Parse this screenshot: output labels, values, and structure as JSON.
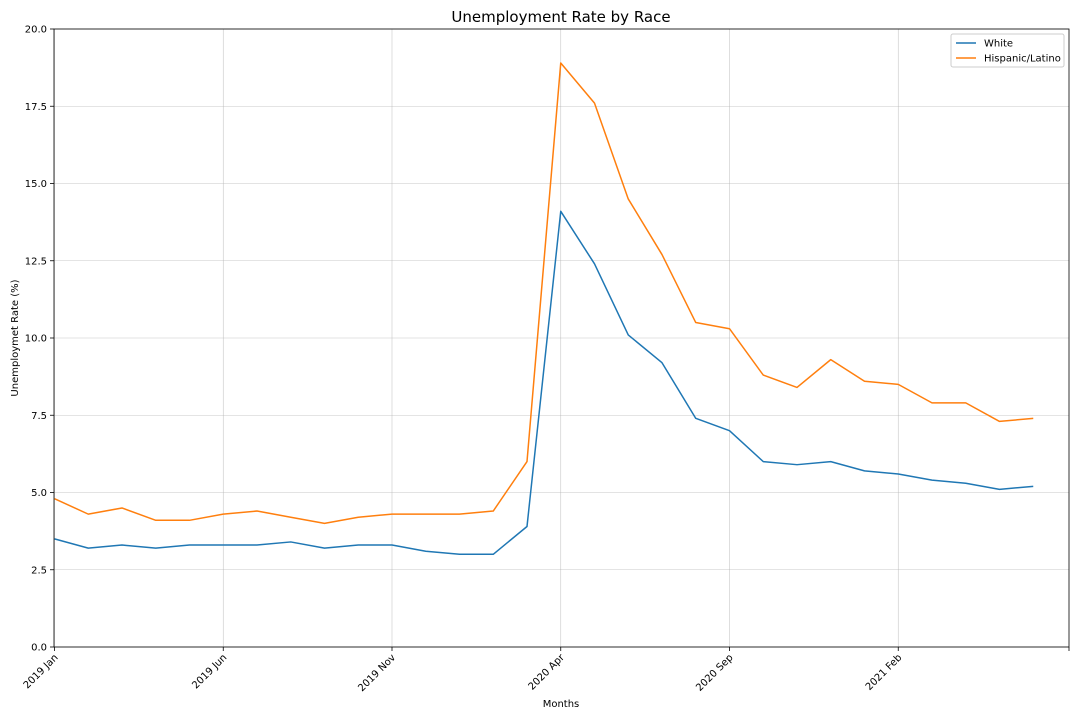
{
  "chart_data": {
    "type": "line",
    "title": "Unemployment Rate by Race",
    "xlabel": "Months",
    "ylabel": "Unemploymet Rate (%)",
    "ylim": [
      0,
      20
    ],
    "yticks": [
      "0.0",
      "2.5",
      "5.0",
      "7.5",
      "10.0",
      "12.5",
      "15.0",
      "17.5",
      "20.0"
    ],
    "ytick_values": [
      0,
      2.5,
      5,
      7.5,
      10,
      12.5,
      15,
      17.5,
      20
    ],
    "x": [
      "2019 Jan",
      "2019 Feb",
      "2019 Mar",
      "2019 Apr",
      "2019 May",
      "2019 Jun",
      "2019 Jul",
      "2019 Aug",
      "2019 Sep",
      "2019 Oct",
      "2019 Nov",
      "2019 Dec",
      "2020 Jan",
      "2020 Feb",
      "2020 Mar",
      "2020 Apr",
      "2020 May",
      "2020 Jun",
      "2020 Jul",
      "2020 Aug",
      "2020 Sep",
      "2020 Oct",
      "2020 Nov",
      "2020 Dec",
      "2021 Jan",
      "2021 Feb",
      "2021 Mar",
      "2021 Apr",
      "2021 May",
      "2021 Jun"
    ],
    "xticks": [
      "2019 Jan",
      "2019 Jun",
      "2019 Nov",
      "2020 Apr",
      "2020 Sep",
      "2021 Feb"
    ],
    "xtick_indices": [
      0,
      5,
      10,
      15,
      20,
      25
    ],
    "series": [
      {
        "name": "White",
        "color": "#1f77b4",
        "values": [
          3.5,
          3.2,
          3.3,
          3.2,
          3.3,
          3.3,
          3.3,
          3.4,
          3.2,
          3.3,
          3.3,
          3.1,
          3.0,
          3.0,
          3.9,
          14.1,
          12.4,
          10.1,
          9.2,
          7.4,
          7.0,
          6.0,
          5.9,
          6.0,
          5.7,
          5.6,
          5.4,
          5.3,
          5.1,
          5.2
        ]
      },
      {
        "name": "Hispanic/Latino",
        "color": "#ff7f0e",
        "values": [
          4.8,
          4.3,
          4.5,
          4.1,
          4.1,
          4.3,
          4.4,
          4.2,
          4.0,
          4.2,
          4.3,
          4.3,
          4.3,
          4.4,
          6.0,
          18.9,
          17.6,
          14.5,
          12.7,
          10.5,
          10.3,
          8.8,
          8.4,
          9.3,
          8.6,
          8.5,
          7.9,
          7.9,
          7.3,
          7.4
        ]
      }
    ],
    "grid": true,
    "legend_position": "top-right"
  }
}
